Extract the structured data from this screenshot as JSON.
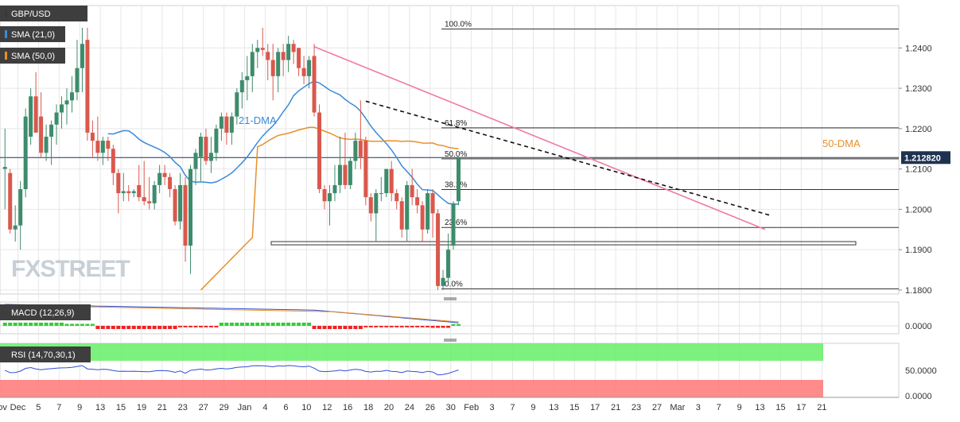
{
  "chart_data": [
    {
      "type": "candlestick",
      "panel": "price",
      "title": "GBP/USD",
      "y_ticks": [
        "1.2400",
        "1.2300",
        "1.2200",
        "1.2100",
        "1.2000",
        "1.1900",
        "1.1800"
      ],
      "y_tick_values": [
        1.24,
        1.23,
        1.22,
        1.21,
        1.2,
        1.19,
        1.18
      ],
      "ylim": [
        1.179,
        1.2505
      ],
      "current_price": "1.212820",
      "current_price_value": 1.21282,
      "legend": [
        {
          "label": "GBP/USD",
          "color": "#3a3a3a"
        },
        {
          "label": "SMA (21,0)",
          "color": "#3a8ad8"
        },
        {
          "label": "SMA (50,0)",
          "color": "#e8902a"
        }
      ],
      "annotations": {
        "sma21": "21-DMA",
        "sma50": "50-DMA",
        "watermark": "FXSTREET"
      },
      "fibonacci": [
        {
          "label": "100.0%",
          "value": 1.2447
        },
        {
          "label": "61.8%",
          "value": 1.2202
        },
        {
          "label": "50.0%",
          "value": 1.2125
        },
        {
          "label": "38.2%",
          "value": 1.2049
        },
        {
          "label": "23.6%",
          "value": 1.1955
        },
        {
          "label": "0.0%",
          "value": 1.1803
        }
      ],
      "support_zone": [
        1.1912,
        1.192
      ],
      "candles": [
        {
          "o": 1.21,
          "h": 1.22,
          "l": 1.2,
          "c": 1.2105
        },
        {
          "o": 1.209,
          "h": 1.21,
          "l": 1.194,
          "c": 1.195
        },
        {
          "o": 1.195,
          "h": 1.201,
          "l": 1.192,
          "c": 1.196
        },
        {
          "o": 1.196,
          "h": 1.207,
          "l": 1.19,
          "c": 1.205
        },
        {
          "o": 1.205,
          "h": 1.225,
          "l": 1.203,
          "c": 1.223
        },
        {
          "o": 1.218,
          "h": 1.23,
          "l": 1.216,
          "c": 1.228
        },
        {
          "o": 1.228,
          "h": 1.234,
          "l": 1.219,
          "c": 1.219
        },
        {
          "o": 1.223,
          "h": 1.229,
          "l": 1.213,
          "c": 1.214
        },
        {
          "o": 1.214,
          "h": 1.221,
          "l": 1.212,
          "c": 1.218
        },
        {
          "o": 1.218,
          "h": 1.222,
          "l": 1.211,
          "c": 1.221
        },
        {
          "o": 1.221,
          "h": 1.226,
          "l": 1.216,
          "c": 1.224
        },
        {
          "o": 1.224,
          "h": 1.228,
          "l": 1.22,
          "c": 1.226
        },
        {
          "o": 1.226,
          "h": 1.23,
          "l": 1.221,
          "c": 1.227
        },
        {
          "o": 1.227,
          "h": 1.233,
          "l": 1.224,
          "c": 1.229
        },
        {
          "o": 1.229,
          "h": 1.242,
          "l": 1.227,
          "c": 1.235
        },
        {
          "o": 1.235,
          "h": 1.245,
          "l": 1.229,
          "c": 1.241
        },
        {
          "o": 1.242,
          "h": 1.245,
          "l": 1.217,
          "c": 1.219
        },
        {
          "o": 1.219,
          "h": 1.222,
          "l": 1.213,
          "c": 1.217
        },
        {
          "o": 1.217,
          "h": 1.223,
          "l": 1.212,
          "c": 1.214
        },
        {
          "o": 1.214,
          "h": 1.218,
          "l": 1.211,
          "c": 1.217
        },
        {
          "o": 1.217,
          "h": 1.218,
          "l": 1.212,
          "c": 1.215
        },
        {
          "o": 1.215,
          "h": 1.216,
          "l": 1.206,
          "c": 1.209
        },
        {
          "o": 1.209,
          "h": 1.21,
          "l": 1.199,
          "c": 1.204
        },
        {
          "o": 1.204,
          "h": 1.209,
          "l": 1.202,
          "c": 1.2045
        },
        {
          "o": 1.2045,
          "h": 1.206,
          "l": 1.202,
          "c": 1.204
        },
        {
          "o": 1.204,
          "h": 1.205,
          "l": 1.203,
          "c": 1.2045
        },
        {
          "o": 1.206,
          "h": 1.211,
          "l": 1.202,
          "c": 1.203
        },
        {
          "o": 1.203,
          "h": 1.212,
          "l": 1.201,
          "c": 1.202
        },
        {
          "o": 1.202,
          "h": 1.208,
          "l": 1.2,
          "c": 1.2015
        },
        {
          "o": 1.2015,
          "h": 1.207,
          "l": 1.2,
          "c": 1.206
        },
        {
          "o": 1.206,
          "h": 1.211,
          "l": 1.204,
          "c": 1.209
        },
        {
          "o": 1.209,
          "h": 1.211,
          "l": 1.206,
          "c": 1.208
        },
        {
          "o": 1.208,
          "h": 1.209,
          "l": 1.203,
          "c": 1.205
        },
        {
          "o": 1.205,
          "h": 1.206,
          "l": 1.196,
          "c": 1.197
        },
        {
          "o": 1.197,
          "h": 1.209,
          "l": 1.195,
          "c": 1.206
        },
        {
          "o": 1.206,
          "h": 1.208,
          "l": 1.187,
          "c": 1.191
        },
        {
          "o": 1.191,
          "h": 1.211,
          "l": 1.184,
          "c": 1.21
        },
        {
          "o": 1.21,
          "h": 1.215,
          "l": 1.206,
          "c": 1.214
        },
        {
          "o": 1.213,
          "h": 1.219,
          "l": 1.207,
          "c": 1.218
        },
        {
          "o": 1.218,
          "h": 1.22,
          "l": 1.211,
          "c": 1.212
        },
        {
          "o": 1.212,
          "h": 1.218,
          "l": 1.209,
          "c": 1.214
        },
        {
          "o": 1.214,
          "h": 1.221,
          "l": 1.212,
          "c": 1.22
        },
        {
          "o": 1.22,
          "h": 1.224,
          "l": 1.217,
          "c": 1.223
        },
        {
          "o": 1.223,
          "h": 1.224,
          "l": 1.216,
          "c": 1.219
        },
        {
          "o": 1.219,
          "h": 1.224,
          "l": 1.216,
          "c": 1.223
        },
        {
          "o": 1.223,
          "h": 1.23,
          "l": 1.221,
          "c": 1.229
        },
        {
          "o": 1.229,
          "h": 1.234,
          "l": 1.225,
          "c": 1.232
        },
        {
          "o": 1.232,
          "h": 1.238,
          "l": 1.227,
          "c": 1.233
        },
        {
          "o": 1.233,
          "h": 1.241,
          "l": 1.229,
          "c": 1.239
        },
        {
          "o": 1.239,
          "h": 1.242,
          "l": 1.235,
          "c": 1.24
        },
        {
          "o": 1.24,
          "h": 1.245,
          "l": 1.238,
          "c": 1.2395
        },
        {
          "o": 1.239,
          "h": 1.241,
          "l": 1.232,
          "c": 1.237
        },
        {
          "o": 1.237,
          "h": 1.241,
          "l": 1.227,
          "c": 1.233
        },
        {
          "o": 1.233,
          "h": 1.24,
          "l": 1.229,
          "c": 1.239
        },
        {
          "o": 1.239,
          "h": 1.241,
          "l": 1.233,
          "c": 1.237
        },
        {
          "o": 1.237,
          "h": 1.243,
          "l": 1.234,
          "c": 1.241
        },
        {
          "o": 1.241,
          "h": 1.242,
          "l": 1.236,
          "c": 1.239
        },
        {
          "o": 1.24,
          "h": 1.24,
          "l": 1.233,
          "c": 1.235
        },
        {
          "o": 1.235,
          "h": 1.238,
          "l": 1.231,
          "c": 1.233
        },
        {
          "o": 1.233,
          "h": 1.238,
          "l": 1.23,
          "c": 1.237
        },
        {
          "o": 1.238,
          "h": 1.241,
          "l": 1.223,
          "c": 1.224
        },
        {
          "o": 1.224,
          "h": 1.226,
          "l": 1.204,
          "c": 1.205
        },
        {
          "o": 1.205,
          "h": 1.206,
          "l": 1.2,
          "c": 1.202
        },
        {
          "o": 1.202,
          "h": 1.206,
          "l": 1.196,
          "c": 1.204
        },
        {
          "o": 1.204,
          "h": 1.211,
          "l": 1.202,
          "c": 1.206
        },
        {
          "o": 1.206,
          "h": 1.218,
          "l": 1.204,
          "c": 1.211
        },
        {
          "o": 1.211,
          "h": 1.219,
          "l": 1.205,
          "c": 1.206
        },
        {
          "o": 1.206,
          "h": 1.213,
          "l": 1.205,
          "c": 1.212
        },
        {
          "o": 1.212,
          "h": 1.219,
          "l": 1.21,
          "c": 1.217
        },
        {
          "o": 1.217,
          "h": 1.227,
          "l": 1.21,
          "c": 1.213
        },
        {
          "o": 1.217,
          "h": 1.218,
          "l": 1.201,
          "c": 1.203
        },
        {
          "o": 1.203,
          "h": 1.204,
          "l": 1.197,
          "c": 1.199
        },
        {
          "o": 1.199,
          "h": 1.205,
          "l": 1.192,
          "c": 1.204
        },
        {
          "o": 1.204,
          "h": 1.208,
          "l": 1.202,
          "c": 1.204
        },
        {
          "o": 1.204,
          "h": 1.21,
          "l": 1.203,
          "c": 1.21
        },
        {
          "o": 1.21,
          "h": 1.212,
          "l": 1.202,
          "c": 1.204
        },
        {
          "o": 1.204,
          "h": 1.205,
          "l": 1.2,
          "c": 1.202
        },
        {
          "o": 1.202,
          "h": 1.203,
          "l": 1.193,
          "c": 1.195
        },
        {
          "o": 1.195,
          "h": 1.207,
          "l": 1.192,
          "c": 1.206
        },
        {
          "o": 1.206,
          "h": 1.21,
          "l": 1.201,
          "c": 1.203
        },
        {
          "o": 1.203,
          "h": 1.205,
          "l": 1.199,
          "c": 1.201
        },
        {
          "o": 1.201,
          "h": 1.202,
          "l": 1.192,
          "c": 1.195
        },
        {
          "o": 1.195,
          "h": 1.205,
          "l": 1.194,
          "c": 1.204
        },
        {
          "o": 1.204,
          "h": 1.205,
          "l": 1.193,
          "c": 1.199
        },
        {
          "o": 1.199,
          "h": 1.2,
          "l": 1.18,
          "c": 1.181
        },
        {
          "o": 1.181,
          "h": 1.185,
          "l": 1.18,
          "c": 1.183
        },
        {
          "o": 1.183,
          "h": 1.194,
          "l": 1.182,
          "c": 1.19
        },
        {
          "o": 1.191,
          "h": 1.202,
          "l": 1.19,
          "c": 1.2015
        },
        {
          "o": 1.202,
          "h": 1.213,
          "l": 1.201,
          "c": 1.2128
        }
      ]
    },
    {
      "type": "bar",
      "panel": "macd",
      "title": "MACD (12,26,9)",
      "y_ticks": [
        "0.0000"
      ],
      "colors": {
        "macd": "#2f4fd6",
        "signal": "#e8902a",
        "hist_pos": "#33cc33",
        "hist_neg": "#ee2222"
      }
    },
    {
      "type": "line",
      "panel": "rsi",
      "title": "RSI (14,70,30,1)",
      "y_ticks": [
        "50.0000",
        "0.0000"
      ],
      "overbought_color": "#66ee66",
      "oversold_color": "#ff7777",
      "line_color": "#2f4fd6"
    }
  ],
  "x_axis": {
    "labels": [
      "Nov",
      "Dec",
      "5",
      "7",
      "9",
      "13",
      "15",
      "19",
      "21",
      "23",
      "27",
      "29",
      "Jan",
      "4",
      "6",
      "10",
      "12",
      "16",
      "18",
      "20",
      "24",
      "26",
      "30",
      "Feb",
      "3",
      "7",
      "9",
      "13",
      "15",
      "17",
      "21",
      "23",
      "27",
      "Mar",
      "3",
      "7",
      "9",
      "13",
      "15",
      "17",
      "21"
    ],
    "candle_index": [
      -2,
      3,
      7,
      11,
      15,
      19,
      23,
      27,
      31,
      35,
      39,
      43,
      47,
      51,
      55,
      59,
      63,
      67,
      71,
      75,
      79,
      83,
      87,
      91,
      95,
      99,
      103,
      107,
      111,
      115,
      119,
      123,
      127,
      131,
      135,
      139,
      143,
      147,
      151,
      155,
      159
    ]
  },
  "theme": {
    "bull": "#3d8c6c",
    "bear": "#d9584d",
    "sma21": "#3a8ad8",
    "sma50": "#e8902a",
    "trend": "#f07aa8",
    "grid": "#e6e6e6",
    "label_bg": "#3e3e3e",
    "price_tag_bg": "#1e3250"
  }
}
